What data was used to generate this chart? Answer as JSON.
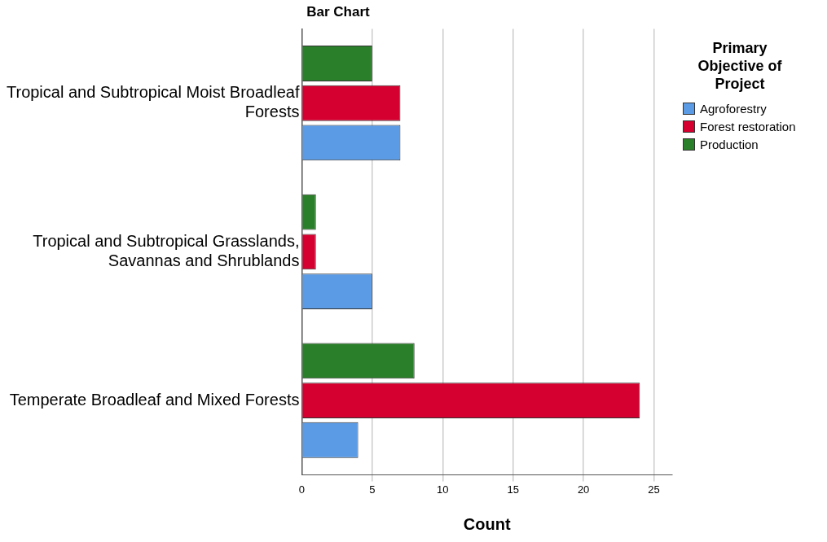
{
  "chart_data": {
    "type": "bar",
    "orientation": "horizontal",
    "title": "Bar Chart",
    "xlabel": "Count",
    "legend_title": "Primary Objective of Project",
    "categories": [
      "Tropical and Subtropical Moist Broadleaf Forests",
      "Tropical and Subtropical Grasslands, Savannas and Shrublands",
      "Temperate Broadleaf and Mixed Forests"
    ],
    "series": [
      {
        "name": "Agroforestry",
        "color": "#5b9be6",
        "values": [
          7,
          5,
          4
        ]
      },
      {
        "name": "Forest restoration",
        "color": "#d5002f",
        "values": [
          7,
          1,
          24
        ]
      },
      {
        "name": "Production",
        "color": "#2a7f2a",
        "values": [
          5,
          1,
          8
        ]
      }
    ],
    "xlim": [
      0,
      26.3
    ],
    "xticks": [
      0,
      5,
      10,
      15,
      20,
      25
    ],
    "grid": "x",
    "legend": "right"
  }
}
